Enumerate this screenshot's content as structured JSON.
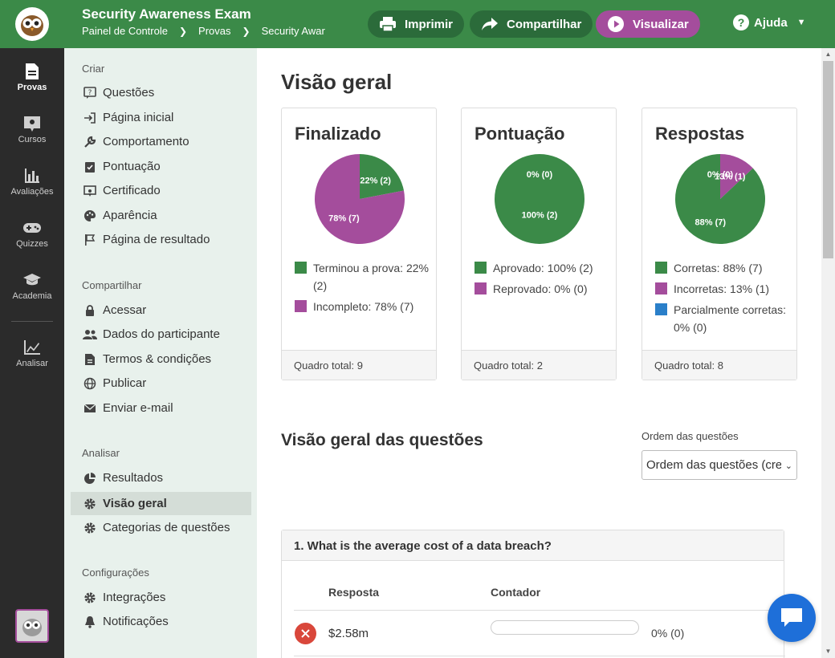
{
  "header": {
    "title": "Security Awareness Exam",
    "breadcrumb": [
      "Painel de Controle",
      "Provas",
      "Security Awar"
    ],
    "print_label": "Imprimir",
    "share_label": "Compartilhar",
    "preview_label": "Visualizar",
    "help_label": "Ajuda"
  },
  "rail": [
    {
      "label": "Provas",
      "icon": "document-icon",
      "active": true
    },
    {
      "label": "Cursos",
      "icon": "course-icon"
    },
    {
      "label": "Avaliações",
      "icon": "bar-chart-icon"
    },
    {
      "label": "Quizzes",
      "icon": "gamepad-icon"
    },
    {
      "label": "Academia",
      "icon": "graduation-cap-icon"
    },
    {
      "label": "Analisar",
      "icon": "line-chart-icon"
    }
  ],
  "sidebar": {
    "sections": [
      {
        "title": "Criar",
        "items": [
          "Questões",
          "Página inicial",
          "Comportamento",
          "Pontuação",
          "Certificado",
          "Aparência",
          "Página de resultado"
        ]
      },
      {
        "title": "Compartilhar",
        "items": [
          "Acessar",
          "Dados do participante",
          "Termos & condições",
          "Publicar",
          "Enviar e-mail"
        ]
      },
      {
        "title": "Analisar",
        "items": [
          "Resultados",
          "Visão geral",
          "Categorias de questões"
        ]
      },
      {
        "title": "Configurações",
        "items": [
          "Integrações",
          "Notificações"
        ]
      }
    ],
    "active_item": "Visão geral"
  },
  "main": {
    "title": "Visão geral",
    "questions_title": "Visão geral das questões",
    "order_label": "Ordem das questões",
    "order_value": "Ordem das questões (crescente)"
  },
  "cards": [
    {
      "title": "Finalizado",
      "footer": "Quadro total: 9",
      "legend": [
        {
          "label": "Terminou a prova: 22% (2)",
          "color": "#3b8a48"
        },
        {
          "label": "Incompleto: 78% (7)",
          "color": "#a44d9c"
        }
      ]
    },
    {
      "title": "Pontuação",
      "footer": "Quadro total: 2",
      "legend": [
        {
          "label": "Aprovado: 100% (2)",
          "color": "#3b8a48"
        },
        {
          "label": "Reprovado: 0% (0)",
          "color": "#a44d9c"
        }
      ]
    },
    {
      "title": "Respostas",
      "footer": "Quadro total: 8",
      "legend": [
        {
          "label": "Corretas: 88% (7)",
          "color": "#3b8a48"
        },
        {
          "label": "Incorretas: 13% (1)",
          "color": "#a44d9c"
        },
        {
          "label": "Parcialmente corretas: 0% (0)",
          "color": "#2a7fc9"
        }
      ]
    }
  ],
  "chart_data": [
    {
      "type": "pie",
      "slices": [
        {
          "label": "22% (2)",
          "value": 22,
          "color": "#3b8a48"
        },
        {
          "label": "78% (7)",
          "value": 78,
          "color": "#a44d9c"
        }
      ]
    },
    {
      "type": "pie",
      "slices": [
        {
          "label": "0% (0)",
          "value": 0,
          "color": "#a44d9c"
        },
        {
          "label": "100% (2)",
          "value": 100,
          "color": "#3b8a48"
        }
      ]
    },
    {
      "type": "pie",
      "slices": [
        {
          "label": "13% (1)",
          "value": 13,
          "color": "#a44d9c"
        },
        {
          "label": "0% (0)",
          "value": 0,
          "color": "#2a7fc9"
        },
        {
          "label": "88% (7)",
          "value": 87,
          "color": "#3b8a48"
        }
      ]
    }
  ],
  "question": {
    "title": "1. What is the average cost of a data breach?",
    "col_answer": "Resposta",
    "col_count": "Contador",
    "rows": [
      {
        "answer": "$2.58m",
        "count": "0% (0)",
        "fraction": 0,
        "correct": false
      }
    ]
  }
}
